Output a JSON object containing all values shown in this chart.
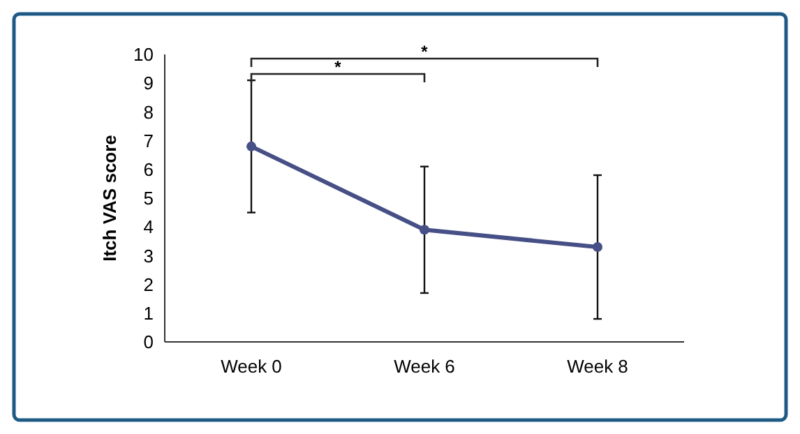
{
  "chart_data": {
    "type": "line",
    "ylabel": "Itch VAS score",
    "categories": [
      "Week 0",
      "Week 6",
      "Week 8"
    ],
    "series": [
      {
        "color": "#464f86",
        "values": [
          6.8,
          3.9,
          3.3
        ],
        "errors": [
          2.3,
          2.2,
          2.5
        ]
      }
    ],
    "ylim": [
      0,
      10
    ],
    "yticks": [
      0,
      1,
      2,
      3,
      4,
      5,
      6,
      7,
      8,
      9,
      10
    ],
    "grid": false,
    "marker": "circle",
    "line_style": "solid",
    "annotations": [
      "*",
      "*"
    ]
  }
}
